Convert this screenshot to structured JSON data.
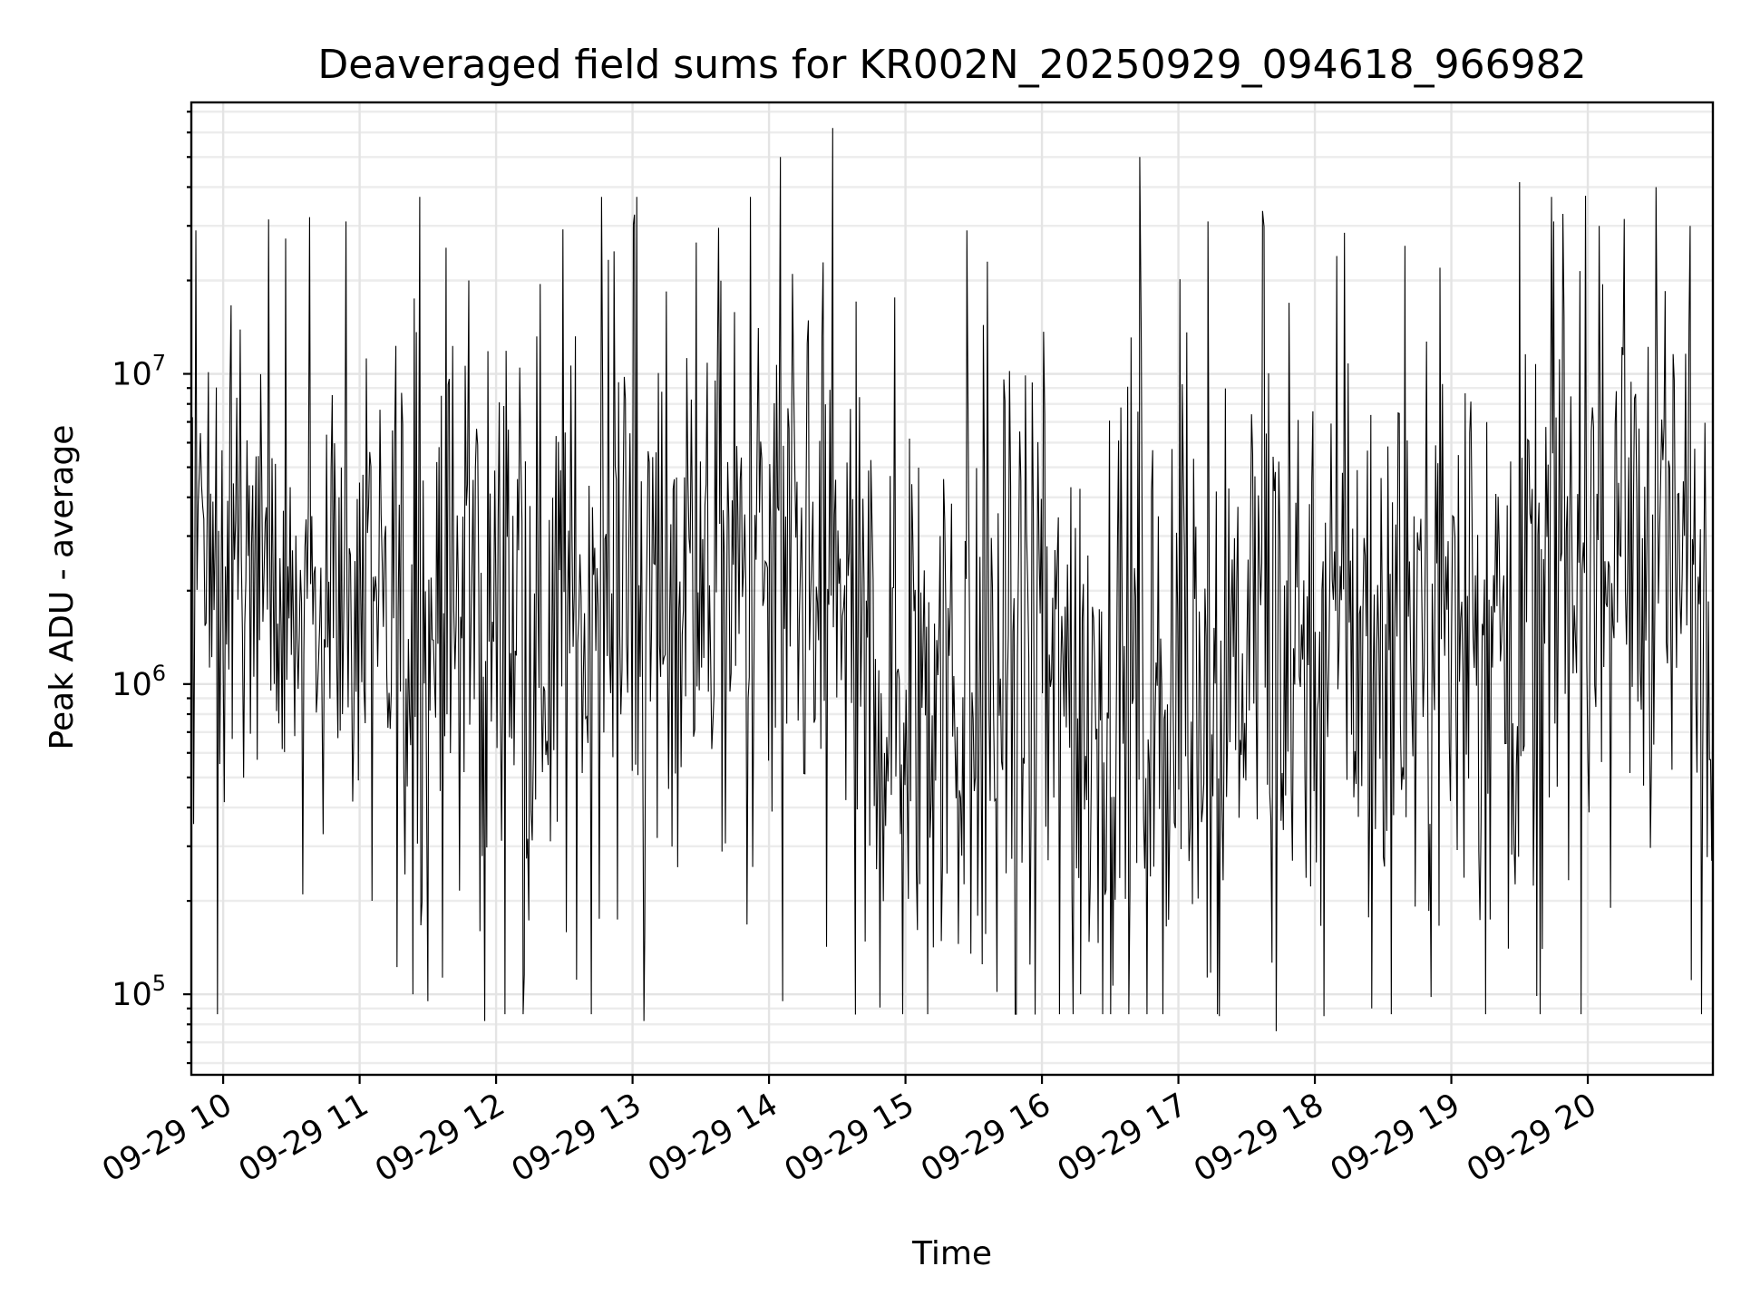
{
  "chart_data": {
    "type": "line",
    "title": "Deaveraged field sums for KR002N_20250929_094618_966982",
    "xlabel": "Time",
    "ylabel": "Peak ADU - average",
    "yscale": "log",
    "ylim": [
      55000,
      75000000
    ],
    "xlim": [
      "2025-09-29 09:46",
      "2025-09-29 20:55"
    ],
    "grid": true,
    "grid_color": "#e4e4e4",
    "line_color": "#000000",
    "x_ticks": [
      {
        "t": "2025-09-29 10:00",
        "label": "09-29 10"
      },
      {
        "t": "2025-09-29 11:00",
        "label": "09-29 11"
      },
      {
        "t": "2025-09-29 12:00",
        "label": "09-29 12"
      },
      {
        "t": "2025-09-29 13:00",
        "label": "09-29 13"
      },
      {
        "t": "2025-09-29 14:00",
        "label": "09-29 14"
      },
      {
        "t": "2025-09-29 15:00",
        "label": "09-29 15"
      },
      {
        "t": "2025-09-29 16:00",
        "label": "09-29 16"
      },
      {
        "t": "2025-09-29 17:00",
        "label": "09-29 17"
      },
      {
        "t": "2025-09-29 18:00",
        "label": "09-29 18"
      },
      {
        "t": "2025-09-29 19:00",
        "label": "09-29 19"
      },
      {
        "t": "2025-09-29 20:00",
        "label": "09-29 20"
      }
    ],
    "y_ticks": [
      {
        "value": 100000,
        "base": "10",
        "exp": "5"
      },
      {
        "value": 1000000,
        "base": "10",
        "exp": "6"
      },
      {
        "value": 10000000,
        "base": "10",
        "exp": "7"
      }
    ],
    "series": [
      {
        "x_start": "2025-09-29 09:46",
        "x_end": "2025-09-29 20:55",
        "sample_count": 1340,
        "y_min_observed": 75000,
        "y_max_observed": 62000000,
        "segments": [
          {
            "x_start": "2025-09-29 09:46",
            "x_end": "2025-09-29 10:50",
            "level": 2000000,
            "spread": 0.65
          },
          {
            "x_start": "2025-09-29 10:50",
            "x_end": "2025-09-29 12:40",
            "level": 1600000,
            "spread": 0.8
          },
          {
            "x_start": "2025-09-29 12:40",
            "x_end": "2025-09-29 14:40",
            "level": 2000000,
            "spread": 0.75
          },
          {
            "x_start": "2025-09-29 14:40",
            "x_end": "2025-09-29 17:20",
            "level": 1000000,
            "spread": 0.9
          },
          {
            "x_start": "2025-09-29 17:20",
            "x_end": "2025-09-29 19:40",
            "level": 1500000,
            "spread": 0.85
          },
          {
            "x_start": "2025-09-29 19:40",
            "x_end": "2025-09-29 20:55",
            "level": 2500000,
            "spread": 0.75
          }
        ],
        "spikes": [
          {
            "t": "2025-09-29 09:48",
            "value": 29000000
          },
          {
            "t": "2025-09-29 10:38",
            "value": 32000000
          },
          {
            "t": "2025-09-29 10:54",
            "value": 31000000
          },
          {
            "t": "2025-09-29 11:24",
            "value": 17500000
          },
          {
            "t": "2025-09-29 11:38",
            "value": 25500000
          },
          {
            "t": "2025-09-29 11:48",
            "value": 20000000
          },
          {
            "t": "2025-09-29 13:28",
            "value": 26500000
          },
          {
            "t": "2025-09-29 14:05",
            "value": 50000000
          },
          {
            "t": "2025-09-29 14:28",
            "value": 62000000
          },
          {
            "t": "2025-09-29 15:27",
            "value": 29000000
          },
          {
            "t": "2025-09-29 15:36",
            "value": 23000000
          },
          {
            "t": "2025-09-29 16:43",
            "value": 50000000
          },
          {
            "t": "2025-09-29 17:13",
            "value": 31000000
          },
          {
            "t": "2025-09-29 17:37",
            "value": 33500000
          },
          {
            "t": "2025-09-29 18:13",
            "value": 28500000
          },
          {
            "t": "2025-09-29 18:55",
            "value": 22000000
          },
          {
            "t": "2025-09-29 19:30",
            "value": 41500000
          },
          {
            "t": "2025-09-29 19:45",
            "value": 31000000
          },
          {
            "t": "2025-09-29 19:59",
            "value": 37500000
          },
          {
            "t": "2025-09-29 20:05",
            "value": 30000000
          },
          {
            "t": "2025-09-29 20:30",
            "value": 40000000
          },
          {
            "t": "2025-09-29 20:45",
            "value": 30000000
          }
        ],
        "dips": [
          {
            "t": "2025-09-29 10:35",
            "value": 210000
          },
          {
            "t": "2025-09-29 11:30",
            "value": 95000
          },
          {
            "t": "2025-09-29 11:55",
            "value": 82000
          },
          {
            "t": "2025-09-29 13:05",
            "value": 82000
          },
          {
            "t": "2025-09-29 14:06",
            "value": 95000
          },
          {
            "t": "2025-09-29 14:38",
            "value": 86000
          },
          {
            "t": "2025-09-29 15:57",
            "value": 86000
          },
          {
            "t": "2025-09-29 16:17",
            "value": 100000
          },
          {
            "t": "2025-09-29 17:18",
            "value": 85000
          },
          {
            "t": "2025-09-29 17:43",
            "value": 76000
          },
          {
            "t": "2025-09-29 18:04",
            "value": 85000
          },
          {
            "t": "2025-09-29 18:25",
            "value": 90000
          },
          {
            "t": "2025-09-29 19:40",
            "value": 140000
          },
          {
            "t": "2025-09-29 20:10",
            "value": 190000
          }
        ]
      }
    ]
  }
}
